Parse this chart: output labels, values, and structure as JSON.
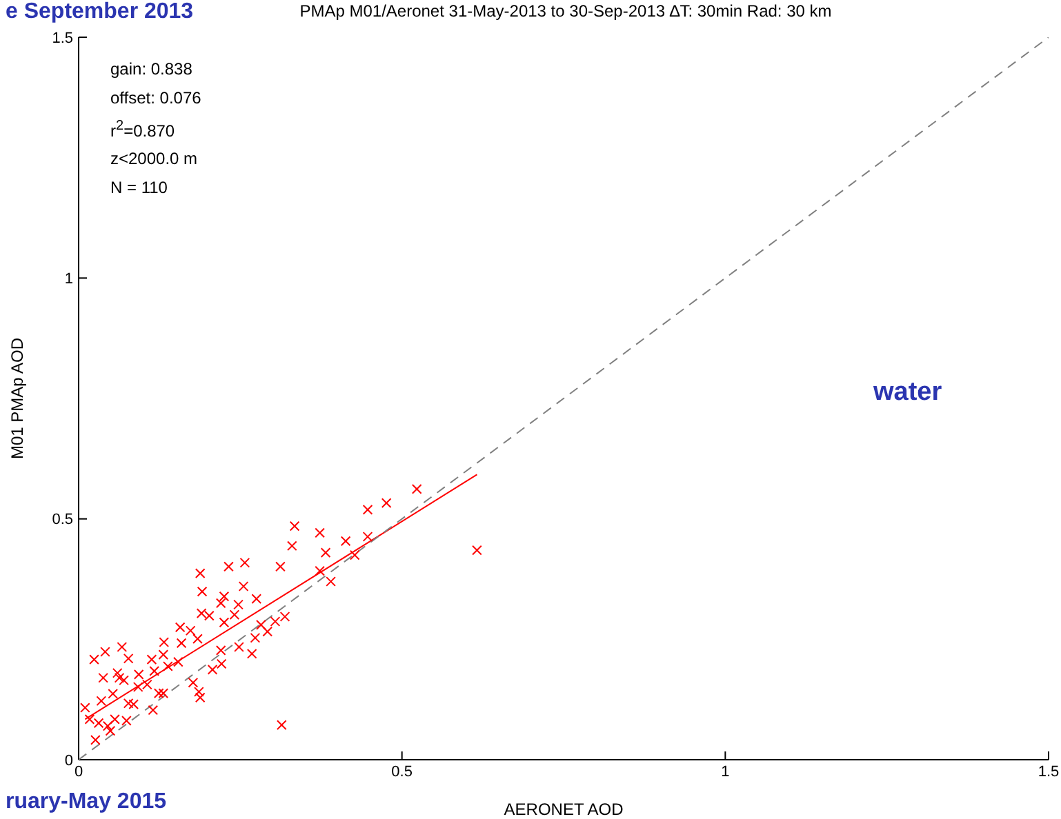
{
  "chart_data": {
    "type": "scatter",
    "title": "PMAp M01/Aeronet 31-May-2013 to 30-Sep-2013 ∆T: 30min Rad: 30 km",
    "xlabel": "AERONET AOD",
    "ylabel": "M01 PMAp AOD",
    "xlim": [
      0,
      1.5
    ],
    "xticks": [
      0,
      0.5,
      1,
      1.5
    ],
    "ylim": [
      0,
      1.5
    ],
    "yticks": [
      0,
      0.5,
      1,
      1.5
    ],
    "grid": false,
    "annotations": [
      "gain: 0.838",
      "offset: 0.076",
      "r$^{2}$=0.870",
      "z<2000.0 m",
      "N = 110",
      "water",
      "e September 2013",
      "ruary-May 2015"
    ],
    "series": [
      {
        "type": "scatter",
        "color": "#ff0000",
        "marker": "cross",
        "x": [
          0.523,
          0.476,
          0.447,
          0.334,
          0.373,
          0.413,
          0.447,
          0.33,
          0.382,
          0.427,
          0.616,
          0.373,
          0.39,
          0.312,
          0.257,
          0.232,
          0.188,
          0.255,
          0.191,
          0.225,
          0.22,
          0.247,
          0.275,
          0.19,
          0.202,
          0.241,
          0.225,
          0.319,
          0.304,
          0.282,
          0.157,
          0.173,
          0.184,
          0.132,
          0.159,
          0.067,
          0.041,
          0.024,
          0.077,
          0.113,
          0.131,
          0.154,
          0.22,
          0.248,
          0.268,
          0.273,
          0.292,
          0.221,
          0.207,
          0.177,
          0.186,
          0.188,
          0.038,
          0.06,
          0.07,
          0.093,
          0.106,
          0.117,
          0.124,
          0.092,
          0.053,
          0.035,
          0.077,
          0.085,
          0.131,
          0.115,
          0.01,
          0.017,
          0.031,
          0.045,
          0.056,
          0.074,
          0.049,
          0.026,
          0.314,
          0.063,
          0.138
        ],
        "values": [
          0.562,
          0.533,
          0.519,
          0.485,
          0.471,
          0.454,
          0.463,
          0.444,
          0.43,
          0.425,
          0.435,
          0.392,
          0.37,
          0.401,
          0.409,
          0.401,
          0.387,
          0.36,
          0.349,
          0.339,
          0.325,
          0.322,
          0.334,
          0.304,
          0.299,
          0.301,
          0.285,
          0.297,
          0.287,
          0.28,
          0.275,
          0.268,
          0.251,
          0.244,
          0.242,
          0.234,
          0.224,
          0.208,
          0.21,
          0.208,
          0.218,
          0.203,
          0.227,
          0.234,
          0.22,
          0.253,
          0.266,
          0.199,
          0.187,
          0.16,
          0.141,
          0.129,
          0.17,
          0.18,
          0.165,
          0.177,
          0.156,
          0.184,
          0.138,
          0.151,
          0.137,
          0.122,
          0.117,
          0.115,
          0.138,
          0.103,
          0.108,
          0.084,
          0.076,
          0.07,
          0.084,
          0.081,
          0.06,
          0.041,
          0.072,
          0.17,
          0.194
        ]
      },
      {
        "type": "line",
        "color": "#ff0000",
        "line_style": "solid",
        "marker": "none",
        "x": [
          0.01,
          0.616
        ],
        "values": [
          0.084,
          0.592
        ]
      },
      {
        "type": "line",
        "color": "#808080",
        "line_style": "dashed",
        "marker": "none",
        "x": [
          0,
          1.5
        ],
        "values": [
          0,
          1.5
        ]
      }
    ]
  }
}
